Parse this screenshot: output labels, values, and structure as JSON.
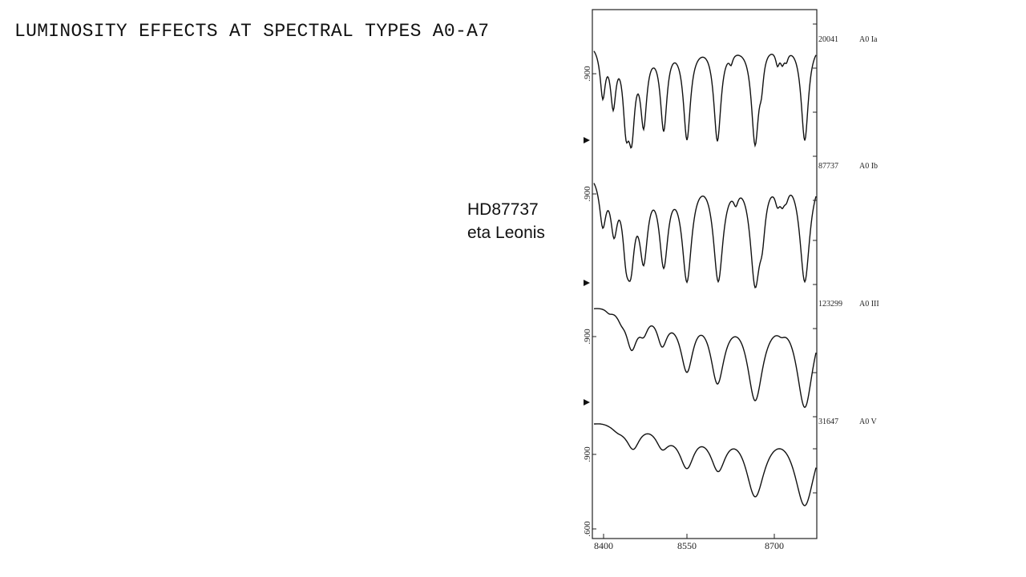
{
  "slide": {
    "title": "LUMINOSITY EFFECTS AT SPECTRAL TYPES A0-A7",
    "note": [
      "HD87737",
      "eta Leonis"
    ],
    "figure": {
      "spectra": [
        {
          "hd": "20041",
          "type": "A0 Ia"
        },
        {
          "hd": "87737",
          "type": "A0 Ib"
        },
        {
          "hd": "123299",
          "type": "A0 III"
        },
        {
          "hd": "31647",
          "type": "A0 V"
        }
      ],
      "y_labels": [
        ".900",
        ".900",
        ".900",
        ".900",
        ".600"
      ],
      "x_labels": [
        "8400",
        "8550",
        "8700"
      ]
    }
  }
}
